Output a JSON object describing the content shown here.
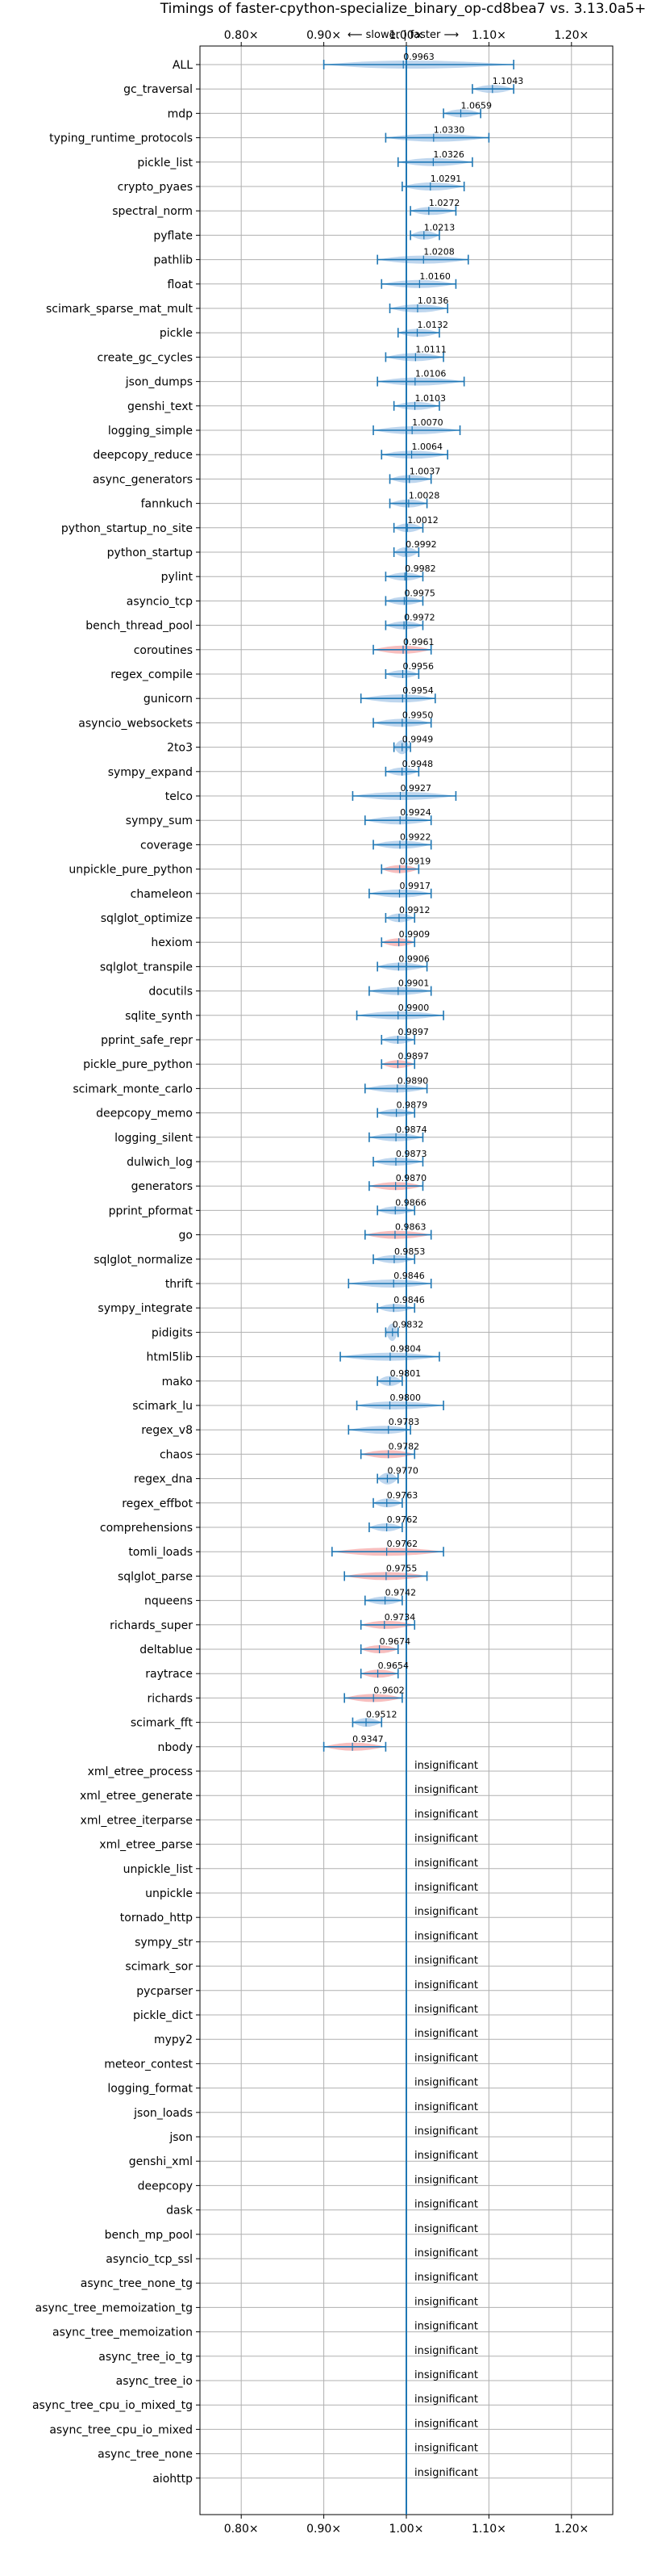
{
  "chart_data": {
    "type": "violin",
    "title": "Timings of faster-cpython-specialize_binary_op-cd8bea7 vs. 3.13.0a5+",
    "direction_label": "⟵ slower | faster ⟶",
    "xlim": [
      0.75,
      1.25
    ],
    "x_ticks": [
      {
        "value": 0.8,
        "label": "0.80×"
      },
      {
        "value": 0.9,
        "label": "0.90×"
      },
      {
        "value": 1.0,
        "label": "1.00×"
      },
      {
        "value": 1.1,
        "label": "1.10×"
      },
      {
        "value": 1.2,
        "label": "1.20×"
      }
    ],
    "grid": true,
    "colors": {
      "faster": "#a8c8e8",
      "slower": "#f4a8a8",
      "line": "#1f77b4"
    },
    "insignificant_label": "insignificant",
    "benchmarks": [
      {
        "name": "ALL",
        "value": 0.9963,
        "low": 0.9,
        "high": 1.13,
        "slower": false
      },
      {
        "name": "gc_traversal",
        "value": 1.1043,
        "low": 1.08,
        "high": 1.13,
        "slower": false
      },
      {
        "name": "mdp",
        "value": 1.0659,
        "low": 1.045,
        "high": 1.09,
        "slower": false
      },
      {
        "name": "typing_runtime_protocols",
        "value": 1.033,
        "low": 0.975,
        "high": 1.1,
        "slower": false
      },
      {
        "name": "pickle_list",
        "value": 1.0326,
        "low": 0.99,
        "high": 1.08,
        "slower": false
      },
      {
        "name": "crypto_pyaes",
        "value": 1.0291,
        "low": 0.995,
        "high": 1.07,
        "slower": false
      },
      {
        "name": "spectral_norm",
        "value": 1.0272,
        "low": 1.005,
        "high": 1.06,
        "slower": false
      },
      {
        "name": "pyflate",
        "value": 1.0213,
        "low": 1.005,
        "high": 1.04,
        "slower": false
      },
      {
        "name": "pathlib",
        "value": 1.0208,
        "low": 0.965,
        "high": 1.075,
        "slower": false
      },
      {
        "name": "float",
        "value": 1.016,
        "low": 0.97,
        "high": 1.06,
        "slower": false
      },
      {
        "name": "scimark_sparse_mat_mult",
        "value": 1.0136,
        "low": 0.98,
        "high": 1.05,
        "slower": false
      },
      {
        "name": "pickle",
        "value": 1.0132,
        "low": 0.99,
        "high": 1.04,
        "slower": false
      },
      {
        "name": "create_gc_cycles",
        "value": 1.0111,
        "low": 0.975,
        "high": 1.045,
        "slower": false
      },
      {
        "name": "json_dumps",
        "value": 1.0106,
        "low": 0.965,
        "high": 1.07,
        "slower": false
      },
      {
        "name": "genshi_text",
        "value": 1.0103,
        "low": 0.985,
        "high": 1.04,
        "slower": false
      },
      {
        "name": "logging_simple",
        "value": 1.007,
        "low": 0.96,
        "high": 1.065,
        "slower": false
      },
      {
        "name": "deepcopy_reduce",
        "value": 1.0064,
        "low": 0.97,
        "high": 1.05,
        "slower": false
      },
      {
        "name": "async_generators",
        "value": 1.0037,
        "low": 0.98,
        "high": 1.03,
        "slower": false
      },
      {
        "name": "fannkuch",
        "value": 1.0028,
        "low": 0.98,
        "high": 1.025,
        "slower": false
      },
      {
        "name": "python_startup_no_site",
        "value": 1.0012,
        "low": 0.985,
        "high": 1.02,
        "slower": false
      },
      {
        "name": "python_startup",
        "value": 0.9992,
        "low": 0.985,
        "high": 1.015,
        "slower": false
      },
      {
        "name": "pylint",
        "value": 0.9982,
        "low": 0.975,
        "high": 1.02,
        "slower": false
      },
      {
        "name": "asyncio_tcp",
        "value": 0.9975,
        "low": 0.975,
        "high": 1.02,
        "slower": false
      },
      {
        "name": "bench_thread_pool",
        "value": 0.9972,
        "low": 0.975,
        "high": 1.02,
        "slower": false
      },
      {
        "name": "coroutines",
        "value": 0.9961,
        "low": 0.96,
        "high": 1.03,
        "slower": true
      },
      {
        "name": "regex_compile",
        "value": 0.9956,
        "low": 0.975,
        "high": 1.015,
        "slower": false
      },
      {
        "name": "gunicorn",
        "value": 0.9954,
        "low": 0.945,
        "high": 1.035,
        "slower": false
      },
      {
        "name": "asyncio_websockets",
        "value": 0.995,
        "low": 0.96,
        "high": 1.03,
        "slower": false
      },
      {
        "name": "2to3",
        "value": 0.9949,
        "low": 0.985,
        "high": 1.005,
        "slower": false
      },
      {
        "name": "sympy_expand",
        "value": 0.9948,
        "low": 0.975,
        "high": 1.015,
        "slower": false
      },
      {
        "name": "telco",
        "value": 0.9927,
        "low": 0.935,
        "high": 1.06,
        "slower": false
      },
      {
        "name": "sympy_sum",
        "value": 0.9924,
        "low": 0.95,
        "high": 1.03,
        "slower": false
      },
      {
        "name": "coverage",
        "value": 0.9922,
        "low": 0.96,
        "high": 1.03,
        "slower": false
      },
      {
        "name": "unpickle_pure_python",
        "value": 0.9919,
        "low": 0.97,
        "high": 1.015,
        "slower": true
      },
      {
        "name": "chameleon",
        "value": 0.9917,
        "low": 0.955,
        "high": 1.03,
        "slower": false
      },
      {
        "name": "sqlglot_optimize",
        "value": 0.9912,
        "low": 0.975,
        "high": 1.01,
        "slower": false
      },
      {
        "name": "hexiom",
        "value": 0.9909,
        "low": 0.97,
        "high": 1.01,
        "slower": true
      },
      {
        "name": "sqlglot_transpile",
        "value": 0.9906,
        "low": 0.965,
        "high": 1.025,
        "slower": false
      },
      {
        "name": "docutils",
        "value": 0.9901,
        "low": 0.955,
        "high": 1.03,
        "slower": false
      },
      {
        "name": "sqlite_synth",
        "value": 0.99,
        "low": 0.94,
        "high": 1.045,
        "slower": false
      },
      {
        "name": "pprint_safe_repr",
        "value": 0.9897,
        "low": 0.97,
        "high": 1.01,
        "slower": false
      },
      {
        "name": "pickle_pure_python",
        "value": 0.9897,
        "low": 0.97,
        "high": 1.01,
        "slower": true
      },
      {
        "name": "scimark_monte_carlo",
        "value": 0.989,
        "low": 0.95,
        "high": 1.025,
        "slower": false
      },
      {
        "name": "deepcopy_memo",
        "value": 0.9879,
        "low": 0.965,
        "high": 1.01,
        "slower": false
      },
      {
        "name": "logging_silent",
        "value": 0.9874,
        "low": 0.955,
        "high": 1.02,
        "slower": false
      },
      {
        "name": "dulwich_log",
        "value": 0.9873,
        "low": 0.96,
        "high": 1.02,
        "slower": false
      },
      {
        "name": "generators",
        "value": 0.987,
        "low": 0.955,
        "high": 1.02,
        "slower": true
      },
      {
        "name": "pprint_pformat",
        "value": 0.9866,
        "low": 0.965,
        "high": 1.01,
        "slower": false
      },
      {
        "name": "go",
        "value": 0.9863,
        "low": 0.95,
        "high": 1.03,
        "slower": true
      },
      {
        "name": "sqlglot_normalize",
        "value": 0.9853,
        "low": 0.96,
        "high": 1.01,
        "slower": false
      },
      {
        "name": "thrift",
        "value": 0.9846,
        "low": 0.93,
        "high": 1.03,
        "slower": false
      },
      {
        "name": "sympy_integrate",
        "value": 0.9846,
        "low": 0.965,
        "high": 1.01,
        "slower": false
      },
      {
        "name": "pidigits",
        "value": 0.9832,
        "low": 0.975,
        "high": 0.99,
        "slower": false
      },
      {
        "name": "html5lib",
        "value": 0.9804,
        "low": 0.92,
        "high": 1.04,
        "slower": false
      },
      {
        "name": "mako",
        "value": 0.9801,
        "low": 0.965,
        "high": 0.995,
        "slower": false
      },
      {
        "name": "scimark_lu",
        "value": 0.98,
        "low": 0.94,
        "high": 1.045,
        "slower": false
      },
      {
        "name": "regex_v8",
        "value": 0.9783,
        "low": 0.93,
        "high": 1.005,
        "slower": false
      },
      {
        "name": "chaos",
        "value": 0.9782,
        "low": 0.945,
        "high": 1.01,
        "slower": true
      },
      {
        "name": "regex_dna",
        "value": 0.977,
        "low": 0.965,
        "high": 0.99,
        "slower": false
      },
      {
        "name": "regex_effbot",
        "value": 0.9763,
        "low": 0.96,
        "high": 0.995,
        "slower": false
      },
      {
        "name": "comprehensions",
        "value": 0.9762,
        "low": 0.955,
        "high": 0.995,
        "slower": false
      },
      {
        "name": "tomli_loads",
        "value": 0.9762,
        "low": 0.91,
        "high": 1.045,
        "slower": true
      },
      {
        "name": "sqlglot_parse",
        "value": 0.9755,
        "low": 0.925,
        "high": 1.025,
        "slower": true
      },
      {
        "name": "nqueens",
        "value": 0.9742,
        "low": 0.95,
        "high": 0.995,
        "slower": false
      },
      {
        "name": "richards_super",
        "value": 0.9734,
        "low": 0.945,
        "high": 1.01,
        "slower": true
      },
      {
        "name": "deltablue",
        "value": 0.9674,
        "low": 0.945,
        "high": 0.99,
        "slower": true
      },
      {
        "name": "raytrace",
        "value": 0.9654,
        "low": 0.945,
        "high": 0.99,
        "slower": true
      },
      {
        "name": "richards",
        "value": 0.9602,
        "low": 0.925,
        "high": 0.995,
        "slower": true
      },
      {
        "name": "scimark_fft",
        "value": 0.9512,
        "low": 0.935,
        "high": 0.97,
        "slower": false
      },
      {
        "name": "nbody",
        "value": 0.9347,
        "low": 0.9,
        "high": 0.975,
        "slower": true
      },
      {
        "name": "xml_etree_process",
        "value": null
      },
      {
        "name": "xml_etree_generate",
        "value": null
      },
      {
        "name": "xml_etree_iterparse",
        "value": null
      },
      {
        "name": "xml_etree_parse",
        "value": null
      },
      {
        "name": "unpickle_list",
        "value": null
      },
      {
        "name": "unpickle",
        "value": null
      },
      {
        "name": "tornado_http",
        "value": null
      },
      {
        "name": "sympy_str",
        "value": null
      },
      {
        "name": "scimark_sor",
        "value": null
      },
      {
        "name": "pycparser",
        "value": null
      },
      {
        "name": "pickle_dict",
        "value": null
      },
      {
        "name": "mypy2",
        "value": null
      },
      {
        "name": "meteor_contest",
        "value": null
      },
      {
        "name": "logging_format",
        "value": null
      },
      {
        "name": "json_loads",
        "value": null
      },
      {
        "name": "json",
        "value": null
      },
      {
        "name": "genshi_xml",
        "value": null
      },
      {
        "name": "deepcopy",
        "value": null
      },
      {
        "name": "dask",
        "value": null
      },
      {
        "name": "bench_mp_pool",
        "value": null
      },
      {
        "name": "asyncio_tcp_ssl",
        "value": null
      },
      {
        "name": "async_tree_none_tg",
        "value": null
      },
      {
        "name": "async_tree_memoization_tg",
        "value": null
      },
      {
        "name": "async_tree_memoization",
        "value": null
      },
      {
        "name": "async_tree_io_tg",
        "value": null
      },
      {
        "name": "async_tree_io",
        "value": null
      },
      {
        "name": "async_tree_cpu_io_mixed_tg",
        "value": null
      },
      {
        "name": "async_tree_cpu_io_mixed",
        "value": null
      },
      {
        "name": "async_tree_none",
        "value": null
      },
      {
        "name": "aiohttp",
        "value": null
      }
    ]
  }
}
